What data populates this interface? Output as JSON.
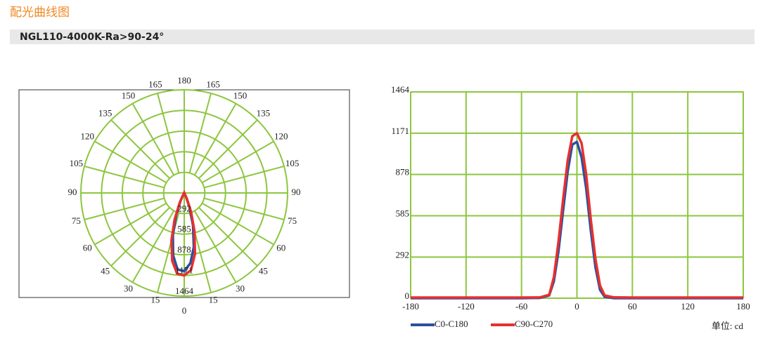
{
  "header": {
    "title": "配光曲线图",
    "subtitle": "NGL110-4000K-Ra>90-24°"
  },
  "chart_data": [
    {
      "type": "polar",
      "theta": [
        -180,
        -60,
        -40,
        -30,
        -25,
        -20,
        -15,
        -10,
        -5,
        0,
        5,
        10,
        15,
        20,
        25,
        30,
        40,
        60,
        180
      ],
      "series": [
        {
          "color": "#2b4fa0",
          "values": [
            0,
            0,
            2,
            20,
            120,
            330,
            620,
            900,
            1090,
            1110,
            1000,
            780,
            480,
            220,
            60,
            10,
            0,
            0,
            0
          ]
        },
        {
          "color": "#e8302e",
          "values": [
            5,
            5,
            6,
            25,
            150,
            400,
            700,
            980,
            1150,
            1171,
            1100,
            880,
            560,
            280,
            90,
            20,
            6,
            5,
            5
          ]
        }
      ],
      "rlim": [
        0,
        1464
      ],
      "rticks": [
        292,
        585,
        878,
        1171,
        1464
      ],
      "thetaticks": [
        0,
        15,
        30,
        45,
        60,
        75,
        90,
        105,
        120,
        135,
        150,
        165,
        180
      ],
      "grid_color": "#8dc63f"
    },
    {
      "type": "line",
      "x": [
        -180,
        -60,
        -40,
        -30,
        -25,
        -20,
        -15,
        -10,
        -5,
        0,
        5,
        10,
        15,
        20,
        25,
        30,
        40,
        60,
        180
      ],
      "series": [
        {
          "name": "C0-C180",
          "color": "#2b4fa0",
          "values": [
            0,
            0,
            2,
            20,
            120,
            330,
            620,
            900,
            1090,
            1110,
            1000,
            780,
            480,
            220,
            60,
            10,
            0,
            0,
            0
          ]
        },
        {
          "name": "C90-C270",
          "color": "#e8302e",
          "values": [
            5,
            5,
            6,
            25,
            150,
            400,
            700,
            980,
            1150,
            1171,
            1100,
            880,
            560,
            280,
            90,
            20,
            6,
            5,
            5
          ]
        }
      ],
      "xlim": [
        -180,
        180
      ],
      "xticks": [
        -180,
        -120,
        -60,
        0,
        60,
        120,
        180
      ],
      "ylim": [
        0,
        1464
      ],
      "yticks": [
        0,
        292,
        585,
        878,
        1171,
        1464
      ],
      "grid": true,
      "grid_color": "#8dc63f",
      "unit_label": "单位: cd"
    }
  ]
}
